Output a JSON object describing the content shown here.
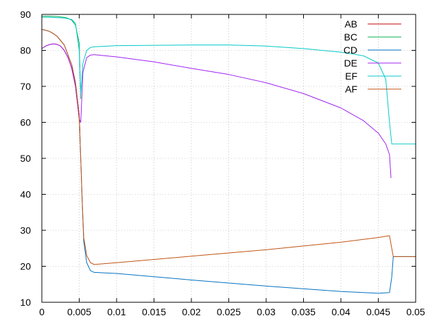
{
  "chart_data": {
    "type": "line",
    "title": "",
    "xlabel": "",
    "ylabel": "",
    "xlim": [
      0,
      0.05
    ],
    "ylim": [
      10,
      90
    ],
    "xticks": [
      0,
      0.005,
      0.01,
      0.015,
      0.02,
      0.025,
      0.03,
      0.035,
      0.04,
      0.045,
      0.05
    ],
    "xtick_labels": [
      "0",
      "0.005",
      "0.01",
      "0.015",
      "0.02",
      "0.025",
      "0.03",
      "0.035",
      "0.04",
      "0.045",
      "0.05"
    ],
    "yticks": [
      10,
      20,
      30,
      40,
      50,
      60,
      70,
      80,
      90
    ],
    "ytick_labels": [
      "10",
      "20",
      "30",
      "40",
      "50",
      "60",
      "70",
      "80",
      "90"
    ],
    "grid": true,
    "legend_position": "top-right",
    "series": [
      {
        "name": "AB",
        "color": "#c00000",
        "x": [
          0,
          0.0005,
          0.001,
          0.0015,
          0.002,
          0.0025,
          0.003,
          0.0035,
          0.004,
          0.0045,
          0.005,
          0.0051
        ],
        "y": [
          80.5,
          81.2,
          81.6,
          81.8,
          81.7,
          81.2,
          80.0,
          78.0,
          75.0,
          70.0,
          61.0,
          57.5
        ]
      },
      {
        "name": "BC",
        "color": "#00b050",
        "x": [
          0,
          0.001,
          0.002,
          0.003,
          0.0035,
          0.004,
          0.0045,
          0.005,
          0.0052
        ],
        "y": [
          89.5,
          89.5,
          89.4,
          89.2,
          88.9,
          88.4,
          87.0,
          82.0,
          66.5
        ]
      },
      {
        "name": "CD",
        "color": "#0070c0",
        "x": [
          0,
          0.0005,
          0.001,
          0.0015,
          0.002,
          0.003,
          0.004,
          0.0045,
          0.005,
          0.0052,
          0.0054,
          0.0056,
          0.006,
          0.0065,
          0.007,
          0.01,
          0.02,
          0.03,
          0.04,
          0.045,
          0.0465,
          0.0468,
          0.047,
          0.05
        ],
        "y": [
          85.8,
          85.6,
          85.3,
          84.7,
          84.0,
          81.5,
          76.0,
          71.0,
          62.0,
          50.0,
          38.0,
          27.0,
          21.0,
          18.8,
          18.3,
          18.0,
          16.2,
          14.5,
          13.0,
          12.5,
          12.7,
          17.0,
          22.7,
          22.7
        ]
      },
      {
        "name": "DE",
        "color": "#a020f0",
        "x": [
          0,
          0.0005,
          0.001,
          0.0015,
          0.002,
          0.0025,
          0.003,
          0.0035,
          0.004,
          0.0045,
          0.005,
          0.0052,
          0.0055,
          0.006,
          0.0065,
          0.007,
          0.01,
          0.015,
          0.02,
          0.025,
          0.03,
          0.035,
          0.04,
          0.043,
          0.045,
          0.046,
          0.0465,
          0.0467
        ],
        "y": [
          80.5,
          81.2,
          81.6,
          81.8,
          81.7,
          81.2,
          80.0,
          78.0,
          75.0,
          70.0,
          61.0,
          60.0,
          74.0,
          78.0,
          78.7,
          78.8,
          78.2,
          76.8,
          75.0,
          73.3,
          71.0,
          68.0,
          64.0,
          60.5,
          57.0,
          54.0,
          51.0,
          44.5
        ]
      },
      {
        "name": "EF",
        "color": "#00c8c8",
        "x": [
          0,
          0.001,
          0.002,
          0.003,
          0.004,
          0.0045,
          0.005,
          0.0052,
          0.0055,
          0.006,
          0.0065,
          0.007,
          0.01,
          0.02,
          0.025,
          0.03,
          0.035,
          0.04,
          0.043,
          0.045,
          0.046,
          0.0465,
          0.0468,
          0.047,
          0.05
        ],
        "y": [
          89.2,
          89.2,
          89.1,
          89.0,
          88.6,
          87.5,
          80.0,
          68.0,
          76.5,
          80.0,
          80.8,
          81.0,
          81.3,
          81.5,
          81.5,
          81.2,
          80.5,
          79.5,
          78.5,
          76.5,
          72.0,
          60.0,
          54.0,
          54.0,
          54.0
        ]
      },
      {
        "name": "AF",
        "color": "#c05010",
        "x": [
          0,
          0.0005,
          0.001,
          0.0015,
          0.002,
          0.003,
          0.004,
          0.0045,
          0.005,
          0.0052,
          0.0054,
          0.0056,
          0.006,
          0.0065,
          0.007,
          0.01,
          0.02,
          0.03,
          0.04,
          0.045,
          0.0465,
          0.0468,
          0.047,
          0.05
        ],
        "y": [
          85.8,
          85.6,
          85.3,
          84.7,
          84.0,
          81.5,
          76.0,
          71.0,
          62.0,
          50.0,
          38.0,
          28.0,
          23.0,
          21.0,
          20.5,
          21.0,
          22.8,
          24.6,
          26.7,
          28.0,
          28.5,
          25.0,
          22.7,
          22.7
        ]
      }
    ]
  }
}
